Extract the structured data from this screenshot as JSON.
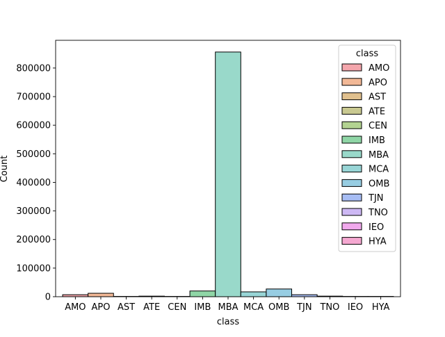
{
  "chart_data": {
    "type": "bar",
    "xlabel": "class",
    "ylabel": "Count",
    "ylim": [
      0,
      897000
    ],
    "yticks": [
      0,
      100000,
      200000,
      300000,
      400000,
      500000,
      600000,
      700000,
      800000
    ],
    "ytick_labels": [
      "0",
      "100000",
      "200000",
      "300000",
      "400000",
      "500000",
      "600000",
      "700000",
      "800000"
    ],
    "categories": [
      "AMO",
      "APO",
      "AST",
      "ATE",
      "CEN",
      "IMB",
      "MBA",
      "MCA",
      "OMB",
      "TJN",
      "TNO",
      "IEO",
      "HYA"
    ],
    "values": [
      7000,
      12000,
      1000,
      2000,
      1000,
      20000,
      856000,
      17000,
      27000,
      7000,
      2000,
      1000,
      1000
    ],
    "colors": [
      "#f4a6ac",
      "#f2b896",
      "#e0c08e",
      "#c9c991",
      "#b3d391",
      "#8fd6a6",
      "#99d9ca",
      "#98d5d6",
      "#97cde2",
      "#a7bdf4",
      "#cdb8f4",
      "#f1a9ed",
      "#f5a8d1"
    ],
    "legend": {
      "title": "class",
      "placement": "top-right",
      "entries": [
        "AMO",
        "APO",
        "AST",
        "ATE",
        "CEN",
        "IMB",
        "MBA",
        "MCA",
        "OMB",
        "TJN",
        "TNO",
        "IEO",
        "HYA"
      ]
    },
    "grid": false
  }
}
